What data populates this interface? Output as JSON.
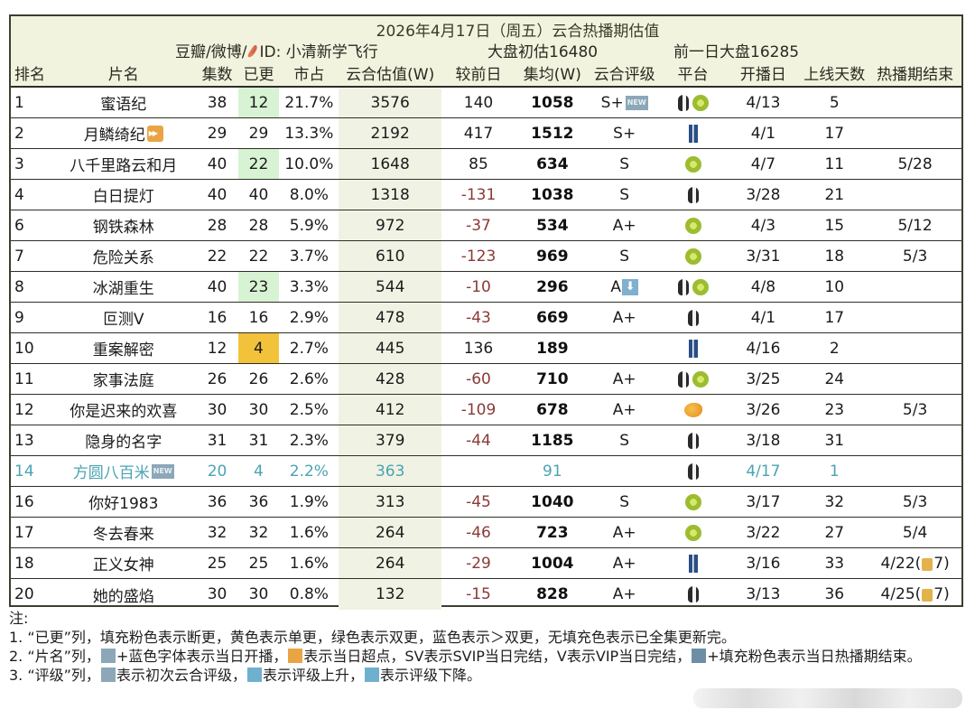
{
  "header": {
    "title": "2026年4月17日（周五）云合热播期估值",
    "source": "豆瓣/微博/",
    "source_id": "ID: 小清新学飞行",
    "market_estimate": "大盘初估16480",
    "prev_market": "前一日大盘16285"
  },
  "columns": [
    "排名",
    "片名",
    "集数",
    "已更",
    "市占",
    "云合估值(W)",
    "较前日",
    "集均(W)",
    "云合评级",
    "平台",
    "开播日",
    "上线天数",
    "热播期结束"
  ],
  "rows": [
    {
      "rank": "1",
      "title": "蜜语纪",
      "badge": "",
      "episodes": "38",
      "updated": "12",
      "updated_bg": "green",
      "share": "21.7%",
      "value": "3576",
      "delta": "140",
      "avg": "1058",
      "rating": "S+",
      "rating_badge": "NEW",
      "platform": [
        "penguin",
        "kiwi"
      ],
      "start": "4/13",
      "days": "5",
      "end": ""
    },
    {
      "rank": "2",
      "title": "月鳞绮纪",
      "badge": "ff",
      "episodes": "29",
      "updated": "29",
      "updated_bg": "",
      "share": "13.3%",
      "value": "2192",
      "delta": "417",
      "avg": "1512",
      "rating": "S+",
      "rating_badge": "",
      "platform": [
        "jeans"
      ],
      "start": "4/1",
      "days": "17",
      "end": ""
    },
    {
      "rank": "3",
      "title": "八千里路云和月",
      "badge": "",
      "episodes": "40",
      "updated": "22",
      "updated_bg": "green",
      "share": "10.0%",
      "value": "1648",
      "delta": "85",
      "avg": "634",
      "rating": "S",
      "rating_badge": "",
      "platform": [
        "kiwi"
      ],
      "start": "4/7",
      "days": "11",
      "end": "5/28"
    },
    {
      "rank": "4",
      "title": "白日提灯",
      "badge": "",
      "episodes": "40",
      "updated": "40",
      "updated_bg": "",
      "share": "8.0%",
      "value": "1318",
      "delta": "-131",
      "avg": "1038",
      "rating": "S",
      "rating_badge": "",
      "platform": [
        "penguin"
      ],
      "start": "3/28",
      "days": "21",
      "end": ""
    },
    {
      "rank": "6",
      "title": "钢铁森林",
      "badge": "",
      "episodes": "28",
      "updated": "28",
      "updated_bg": "",
      "share": "5.9%",
      "value": "972",
      "delta": "-37",
      "avg": "534",
      "rating": "A+",
      "rating_badge": "",
      "platform": [
        "kiwi"
      ],
      "start": "4/3",
      "days": "15",
      "end": "5/12"
    },
    {
      "rank": "7",
      "title": "危险关系",
      "badge": "",
      "episodes": "22",
      "updated": "22",
      "updated_bg": "",
      "share": "3.7%",
      "value": "610",
      "delta": "-123",
      "avg": "969",
      "rating": "S",
      "rating_badge": "",
      "platform": [
        "kiwi"
      ],
      "start": "3/31",
      "days": "18",
      "end": "5/3"
    },
    {
      "rank": "8",
      "title": "冰湖重生",
      "badge": "",
      "episodes": "40",
      "updated": "23",
      "updated_bg": "green",
      "share": "3.3%",
      "value": "544",
      "delta": "-10",
      "avg": "296",
      "rating": "A",
      "rating_badge": "down",
      "platform": [
        "penguin",
        "kiwi"
      ],
      "start": "4/8",
      "days": "10",
      "end": ""
    },
    {
      "rank": "9",
      "title": "叵测V",
      "badge": "",
      "episodes": "16",
      "updated": "16",
      "updated_bg": "",
      "share": "2.9%",
      "value": "478",
      "delta": "-43",
      "avg": "669",
      "rating": "A+",
      "rating_badge": "",
      "platform": [
        "penguin"
      ],
      "start": "4/1",
      "days": "17",
      "end": ""
    },
    {
      "rank": "10",
      "title": "重案解密",
      "badge": "",
      "episodes": "12",
      "updated": "4",
      "updated_bg": "yellow",
      "share": "2.7%",
      "value": "445",
      "delta": "136",
      "avg": "189",
      "rating": "",
      "rating_badge": "",
      "platform": [
        "jeans"
      ],
      "start": "4/16",
      "days": "2",
      "end": ""
    },
    {
      "rank": "11",
      "title": "家事法庭",
      "badge": "",
      "episodes": "26",
      "updated": "26",
      "updated_bg": "",
      "share": "2.6%",
      "value": "428",
      "delta": "-60",
      "avg": "710",
      "rating": "A+",
      "rating_badge": "",
      "platform": [
        "penguin",
        "kiwi"
      ],
      "start": "3/25",
      "days": "24",
      "end": ""
    },
    {
      "rank": "12",
      "title": "你是迟来的欢喜",
      "badge": "",
      "episodes": "30",
      "updated": "30",
      "updated_bg": "",
      "share": "2.5%",
      "value": "412",
      "delta": "-109",
      "avg": "678",
      "rating": "A+",
      "rating_badge": "",
      "platform": [
        "mango"
      ],
      "start": "3/26",
      "days": "23",
      "end": "5/3"
    },
    {
      "rank": "13",
      "title": "隐身的名字",
      "badge": "",
      "episodes": "31",
      "updated": "31",
      "updated_bg": "",
      "share": "2.3%",
      "value": "379",
      "delta": "-44",
      "avg": "1185",
      "rating": "S",
      "rating_badge": "",
      "platform": [
        "penguin"
      ],
      "start": "3/18",
      "days": "31",
      "end": ""
    },
    {
      "rank": "14",
      "title": "方圆八百米",
      "badge": "new",
      "episodes": "20",
      "updated": "4",
      "updated_bg": "",
      "share": "2.2%",
      "value": "363",
      "delta": "",
      "avg": "91",
      "rating": "",
      "rating_badge": "",
      "platform": [
        "penguin"
      ],
      "start": "4/17",
      "days": "1",
      "end": "",
      "is_new": true
    },
    {
      "rank": "16",
      "title": "你好1983",
      "badge": "",
      "episodes": "36",
      "updated": "36",
      "updated_bg": "",
      "share": "1.9%",
      "value": "313",
      "delta": "-45",
      "avg": "1040",
      "rating": "S",
      "rating_badge": "",
      "platform": [
        "kiwi"
      ],
      "start": "3/17",
      "days": "32",
      "end": "5/3"
    },
    {
      "rank": "17",
      "title": "冬去春来",
      "badge": "",
      "episodes": "32",
      "updated": "32",
      "updated_bg": "",
      "share": "1.6%",
      "value": "264",
      "delta": "-46",
      "avg": "723",
      "rating": "A+",
      "rating_badge": "",
      "platform": [
        "kiwi"
      ],
      "start": "3/22",
      "days": "27",
      "end": "5/4"
    },
    {
      "rank": "18",
      "title": "正义女神",
      "badge": "",
      "episodes": "25",
      "updated": "25",
      "updated_bg": "",
      "share": "1.6%",
      "value": "264",
      "delta": "-29",
      "avg": "1004",
      "rating": "A+",
      "rating_badge": "",
      "platform": [
        "jeans"
      ],
      "start": "3/16",
      "days": "33",
      "end": "4/22(",
      "end_lock": "7)"
    },
    {
      "rank": "20",
      "title": "她的盛焰",
      "badge": "",
      "episodes": "30",
      "updated": "30",
      "updated_bg": "",
      "share": "0.8%",
      "value": "132",
      "delta": "-15",
      "avg": "828",
      "rating": "A+",
      "rating_badge": "",
      "platform": [
        "penguin"
      ],
      "start": "3/13",
      "days": "36",
      "end": "4/25(",
      "end_lock": "7)"
    }
  ],
  "notes": {
    "heading": "注:",
    "line1": "1. “已更”列，填充粉色表示断更，黄色表示单更，绿色表示双更，蓝色表示＞双更，无填充色表示已全集更新完。",
    "line2a": "2. “片名”列，",
    "line2b": "+蓝色字体表示当日开播，",
    "line2c": "表示当日超点，SV表示SVIP当日完结，V表示VIP当日完结，",
    "line2d": "+填充粉色表示当日热播期结束。",
    "line3a": "3. “评级”列，",
    "line3b": "表示初次云合评级，",
    "line3c": "表示评级上升，",
    "line3d": "表示评级下降。"
  },
  "badges": {
    "new": "NEW",
    "down": "⬇"
  }
}
